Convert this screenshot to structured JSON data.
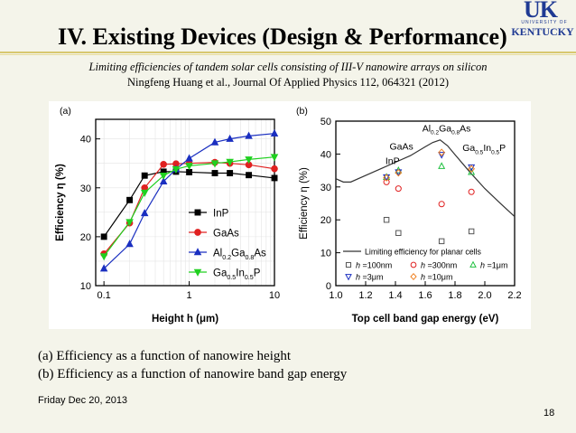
{
  "logo": {
    "abbr": "UK",
    "university_line": "UNIVERSITY OF",
    "name": "KENTUCKY"
  },
  "slide": {
    "title": "IV. Existing Devices (Design & Performance)",
    "subtitle": "Limiting efficiencies of tandem solar cells consisting of III-V nanowire arrays on silicon",
    "citation": "Ningfeng Huang et al., Journal Of Applied Physics 112, 064321 (2012)",
    "captions": [
      "(a)   Efficiency as a function of nanowire height",
      "(b)   Efficiency as a function of nanowire band gap energy"
    ],
    "date": "Friday Dec 20, 2013",
    "page_number": "18"
  },
  "chart_data": [
    {
      "panel": "(a)",
      "type": "line",
      "xlabel": "Height h (μm)",
      "ylabel": "Efficiency η (%)",
      "x_scale": "log",
      "xlim": [
        0.08,
        10
      ],
      "ylim": [
        10,
        44
      ],
      "x_ticks": [
        "0.1",
        "1",
        "10"
      ],
      "y_ticks": [
        "10",
        "20",
        "30",
        "40"
      ],
      "legend_position": "bottom-right",
      "x": [
        0.1,
        0.2,
        0.3,
        0.5,
        0.7,
        1,
        2,
        3,
        5,
        10
      ],
      "series": [
        {
          "name": "InP",
          "color": "#000000",
          "marker": "square",
          "values": [
            20,
            27.5,
            32.5,
            33.3,
            33.3,
            33.2,
            33,
            33,
            32.6,
            32
          ]
        },
        {
          "name": "GaAs",
          "color": "#e02020",
          "marker": "circle",
          "values": [
            16.5,
            22.8,
            30,
            34.8,
            34.9,
            35,
            35.2,
            35,
            34.7,
            33.9
          ]
        },
        {
          "name": "Al0.2Ga0.8As",
          "color": "#1a2fc0",
          "marker": "triangle-up",
          "values": [
            13.5,
            18.5,
            24.8,
            31.3,
            33.8,
            36,
            39.3,
            40,
            40.6,
            41.1
          ]
        },
        {
          "name": "Ga0.5In0.5P",
          "color": "#20d020",
          "marker": "triangle-down",
          "values": [
            16,
            23,
            29,
            32.5,
            33.8,
            34.5,
            35,
            35.3,
            35.8,
            36.3
          ]
        }
      ],
      "legend_labels": [
        {
          "plain": "InP"
        },
        {
          "plain": "GaAs"
        },
        {
          "parts": [
            "Al",
            "0.2",
            "Ga",
            "0.8",
            "As"
          ]
        },
        {
          "parts": [
            "Ga",
            "0.5",
            "In",
            "0.5",
            "P"
          ]
        }
      ]
    },
    {
      "panel": "(b)",
      "type": "scatter",
      "xlabel": "Top cell band gap energy (eV)",
      "ylabel": "Efficiency η (%)",
      "xlim": [
        1.0,
        2.2
      ],
      "ylim": [
        0,
        50
      ],
      "x_ticks": [
        "1.0",
        "1.2",
        "1.4",
        "1.6",
        "1.8",
        "2.0",
        "2.2"
      ],
      "y_ticks": [
        "0",
        "10",
        "20",
        "30",
        "40",
        "50"
      ],
      "curve": {
        "name": "Limiting efficiency for planar cells",
        "x": [
          1.0,
          1.05,
          1.1,
          1.2,
          1.3,
          1.4,
          1.5,
          1.6,
          1.65,
          1.7,
          1.75,
          1.8,
          1.9,
          2.0,
          2.1,
          2.2
        ],
        "values": [
          32.5,
          31.5,
          31.5,
          33.5,
          35.5,
          37.5,
          39.5,
          42.2,
          43.5,
          44.3,
          42.5,
          39.8,
          34.5,
          29.5,
          25.2,
          21
        ]
      },
      "series": [
        {
          "name": "h=100nm",
          "color": "#555555",
          "marker": "square-open",
          "x": [
            1.34,
            1.42,
            1.71,
            1.91
          ],
          "values": [
            20,
            16,
            13.5,
            16.5
          ]
        },
        {
          "name": "h=300nm",
          "color": "#e02020",
          "marker": "circle-open",
          "x": [
            1.34,
            1.42,
            1.71,
            1.91
          ],
          "values": [
            31.5,
            29.5,
            24.8,
            28.5
          ]
        },
        {
          "name": "h=1μm",
          "color": "#20c040",
          "marker": "triangle-up-open",
          "x": [
            1.34,
            1.42,
            1.71,
            1.91
          ],
          "values": [
            33,
            35,
            36.3,
            34.5
          ]
        },
        {
          "name": "h=3μm",
          "color": "#1a2fc0",
          "marker": "triangle-down-open",
          "x": [
            1.34,
            1.42,
            1.71,
            1.91
          ],
          "values": [
            33,
            34.5,
            39.8,
            36
          ]
        },
        {
          "name": "h=10μm",
          "color": "#f08020",
          "marker": "diamond-open",
          "x": [
            1.34,
            1.42,
            1.71,
            1.91
          ],
          "values": [
            32.8,
            34.3,
            40.5,
            35.5
          ]
        }
      ],
      "annotations": [
        {
          "text": "InP",
          "x": 1.38,
          "y": 38
        },
        {
          "text": "GaAs",
          "x": 1.44,
          "y": 42.5
        },
        {
          "text": "Ga0.5In0.5P",
          "x": 1.93,
          "y": 42
        }
      ],
      "top_annotation": {
        "parts": [
          "Al",
          "0.2",
          "Ga",
          "0.8",
          "As"
        ]
      },
      "annotation_labels": {
        "inp": "InP",
        "gaas": "GaAs",
        "gainp": [
          "Ga",
          "0.5",
          "In",
          "0.5",
          "P"
        ]
      },
      "legend_labels": {
        "curve": "Limiting efficiency for planar cells",
        "rows": [
          [
            {
              "h": "h",
              "v": " =100nm"
            },
            {
              "h": "h",
              "v": " =300nm"
            },
            {
              "h": "h",
              "v": " =1μm"
            }
          ],
          [
            {
              "h": "h",
              "v": " =3μm"
            },
            {
              "h": "h",
              "v": " =10μm"
            }
          ]
        ]
      }
    }
  ]
}
